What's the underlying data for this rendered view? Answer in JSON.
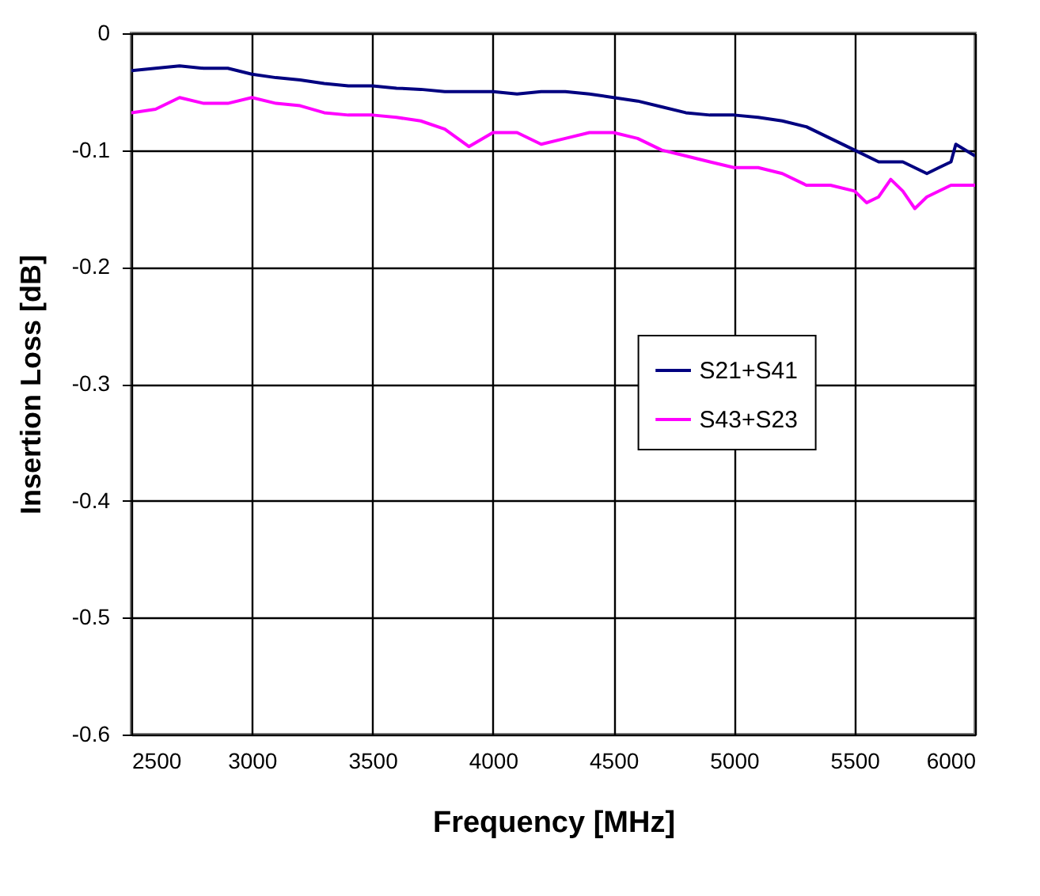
{
  "chart_data": {
    "type": "line",
    "xlabel": "Frequency [MHz]",
    "ylabel": "Insertion Loss [dB]",
    "xlim": [
      2500,
      6000
    ],
    "xticks": [
      2500,
      3000,
      3500,
      4000,
      4500,
      5000,
      5500,
      6000
    ],
    "ylim": [
      -0.6,
      0
    ],
    "yticks": [
      -0.6,
      -0.5,
      -0.4,
      -0.3,
      -0.2,
      -0.1,
      0
    ],
    "grid": true,
    "legend": "right",
    "marker": "none",
    "line_style": "solid",
    "series": [
      {
        "name": "S21+S41",
        "color": "#000080",
        "x": [
          2500,
          2600,
          2700,
          2800,
          2900,
          3000,
          3100,
          3200,
          3300,
          3400,
          3500,
          3600,
          3700,
          3800,
          3900,
          4000,
          4100,
          4200,
          4300,
          4400,
          4500,
          4600,
          4700,
          4800,
          4900,
          5000,
          5100,
          5200,
          5300,
          5400,
          5500,
          5600,
          5700,
          5800,
          5850,
          5900,
          5920,
          6000
        ],
        "values": [
          -0.032,
          -0.03,
          -0.028,
          -0.03,
          -0.03,
          -0.035,
          -0.038,
          -0.04,
          -0.043,
          -0.045,
          -0.045,
          -0.047,
          -0.048,
          -0.05,
          -0.05,
          -0.05,
          -0.052,
          -0.05,
          -0.05,
          -0.052,
          -0.055,
          -0.058,
          -0.063,
          -0.068,
          -0.07,
          -0.07,
          -0.072,
          -0.075,
          -0.08,
          -0.09,
          -0.1,
          -0.11,
          -0.11,
          -0.12,
          -0.115,
          -0.11,
          -0.095,
          -0.105
        ]
      },
      {
        "name": "S43+S23",
        "color": "#ff00ff",
        "x": [
          2500,
          2600,
          2700,
          2800,
          2900,
          3000,
          3100,
          3200,
          3300,
          3400,
          3500,
          3600,
          3700,
          3800,
          3900,
          4000,
          4100,
          4200,
          4300,
          4400,
          4500,
          4600,
          4700,
          4800,
          4900,
          5000,
          5100,
          5200,
          5300,
          5400,
          5500,
          5550,
          5600,
          5650,
          5700,
          5750,
          5800,
          5900,
          6000
        ],
        "values": [
          -0.068,
          -0.065,
          -0.055,
          -0.06,
          -0.06,
          -0.055,
          -0.06,
          -0.062,
          -0.068,
          -0.07,
          -0.07,
          -0.072,
          -0.075,
          -0.082,
          -0.097,
          -0.085,
          -0.085,
          -0.095,
          -0.09,
          -0.085,
          -0.085,
          -0.09,
          -0.1,
          -0.105,
          -0.11,
          -0.115,
          -0.115,
          -0.12,
          -0.13,
          -0.13,
          -0.135,
          -0.145,
          -0.14,
          -0.125,
          -0.135,
          -0.15,
          -0.14,
          -0.13,
          -0.13
        ]
      }
    ]
  }
}
